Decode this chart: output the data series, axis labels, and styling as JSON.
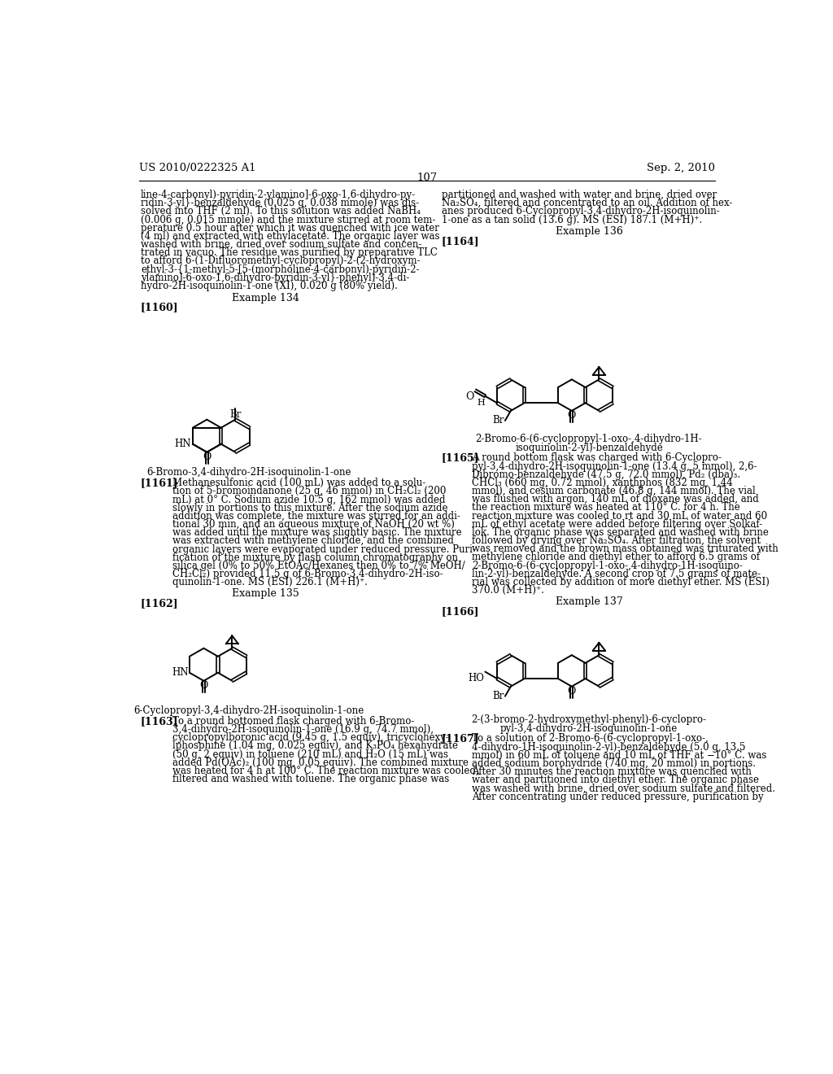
{
  "page_number": "107",
  "patent_number": "US 2010/0222325 A1",
  "patent_date": "Sep. 2, 2010",
  "background_color": "#ffffff",
  "text_color": "#000000",
  "left_col_text": [
    "line-4-carbonyl)-pyridin-2-ylamino]-6-oxo-1,6-dihydro-py-",
    "ridin-3-yl}-benzaldehyde (0.025 g, 0.038 mmole) was dis-",
    "solved into THF (2 ml). To this solution was added NaBH₄",
    "(0.006 g, 0.015 mmole) and the mixture stirred at room tem-",
    "perature 0.5 hour after which it was quenched with ice water",
    "(4 ml) and extracted with ethylacetate. The organic layer was",
    "washed with brine, dried over sodium sulfate and concen-",
    "trated in vacuo. The residue was purified by preparative TLC",
    "to afford 6-(1-Difluoromethyl-cyclopropyl)-2-(2-hydroxym-",
    "ethyl-3-{1-methyl-5-[5-(morpholine-4-carbonyl)-pyridin-2-",
    "ylamino]-6-oxo-1,6-dihydro-pyridin-3-yl}-phenyl)-3,4-di-",
    "hydro-2H-isoquinolin-1-one (XI), 0.020 g (80% yield)."
  ],
  "right_col_text": [
    "partitioned and washed with water and brine, dried over",
    "Na₂SO₄, filtered and concentrated to an oil. Addition of hex-",
    "anes produced 6-Cyclopropyl-3,4-dihydro-2H-isoquinolin-",
    "1-one as a tan solid (13.6 g). MS (ESI) 187.1 (M+H)⁺."
  ],
  "example134_label": "Example 134",
  "example135_label": "Example 135",
  "example136_label": "Example 136",
  "example137_label": "Example 137",
  "struct1160_name": "6-Bromo-3,4-dihydro-2H-isoquinolin-1-one",
  "struct1162_name": "6-Cyclopropyl-3,4-dihydro-2H-isoquinolin-1-one",
  "struct1164_name_l1": "2-Bromo-6-(6-cyclopropyl-1-oxo-,4-dihydro-1H-",
  "struct1164_name_l2": "isoquinolin-2-yl)-benzaldehyde",
  "struct1166_name_l1": "2-(3-bromo-2-hydroxymethyl-phenyl)-6-cyclopro-",
  "struct1166_name_l2": "pyl-3,4-dihydro-2H-isoquinolin-1-one",
  "body1161": [
    "Methanesulfonic acid (100 mL) was added to a solu-",
    "tion of 5-bromoindanone (25 g, 46 mmol) in CH₂Cl₂ (200",
    "mL) at 0° C. Sodium azide 10.5 g, 162 mmol) was added",
    "slowly in portions to this mixture. After the sodium azide",
    "addition was complete, the mixture was stirred for an addi-",
    "tional 30 min, and an aqueous mixture of NaOH (20 wt %)",
    "was added until the mixture was slightly basic. The mixture",
    "was extracted with methylene chloride, and the combined",
    "organic layers were evaporated under reduced pressure. Puri-",
    "fication of the mixture by flash column chromatography on",
    "silica gel (0% to 50% EtOAc/Hexanes then 0% to 7% MeOH/",
    "CH₂Cl₂) provided 11.5 g of 6-Bromo-3,4-dihydro-2H-iso-",
    "quinolin-1-one. MS (ESI) 226.1 (M+H)⁺."
  ],
  "body1163": [
    "To a round bottomed flask charged with 6-Bromo-",
    "3,4-dihydro-2H-isoquinolin-1-one (16.9 g, 74.7 mmol),",
    "cyclopropylboronic acid (9.45 g, 1.5 equiv), tricyclohexy-",
    "lphosphine (1.04 mg, 0.025 equiv), and K₃PO₄ hexahydrate",
    "(50 g, 2 equiv) in toluene (210 mL) and H₂O (15 mL) was",
    "added Pd(OAc)₂ (100 mg, 0.05 equiv). The combined mixture",
    "was heated for 4 h at 100° C. The reaction mixture was cooled,",
    "filtered and washed with toluene. The organic phase was"
  ],
  "body1165": [
    "A round bottom flask was charged with 6-Cyclopro-",
    "pyl-3,4-dihydro-2H-isoquinolin-1-one (13.4 g, 5 mmol), 2,6-",
    "Dibromo-benzaldehyde (47.5 g, 72.0 mmol), Pd₂ (dba)₃.",
    "CHCl₃ (660 mg, 0.72 mmol), xanthphos (832 mg, 1.44",
    "mmol), and cesium carbonate (46.8 g, 144 mmol). The vial",
    "was flushed with argon, 140 mL of dioxane was added, and",
    "the reaction mixture was heated at 110° C. for 4 h. The",
    "reaction mixture was cooled to rt and 30 mL of water and 60",
    "mL of ethyl acetate were added before filtering over Solkaf-",
    "lok. The organic phase was separated and washed with brine",
    "followed by drying over Na₂SO₄. After filtration, the solvent",
    "was removed and the brown mass obtained was triturated with",
    "methylene chloride and diethyl ether to afford 6.5 grams of",
    "2-Bromo-6-(6-cyclopropyl-1-oxo-,4-dihydro-1H-isoquino-",
    "lin-2-yl)-benzaldehyde. A second crop of 7.5 grams of mate-",
    "rial was collected by addition of more diethyl ether. MS (ESI)",
    "370.0 (M+H)⁺."
  ],
  "body1167": [
    "To a solution of 2-Bromo-6-(6-cyclopropyl-1-oxo-,",
    "4-dihydro-1H-isoquinolin-2-yl)-benzaldehyde (5.0 g, 13.5",
    "mmol) in 60 mL of toluene and 10 mL of THF at −10° C. was",
    "added sodium borohydride (740 mg, 20 mmol) in portions.",
    "After 30 minutes the reaction mixture was quenched with",
    "water and partitioned into diethyl ether. The organic phase",
    "was washed with brine, dried over sodium sulfate and filtered.",
    "After concentrating under reduced pressure, purification by"
  ]
}
